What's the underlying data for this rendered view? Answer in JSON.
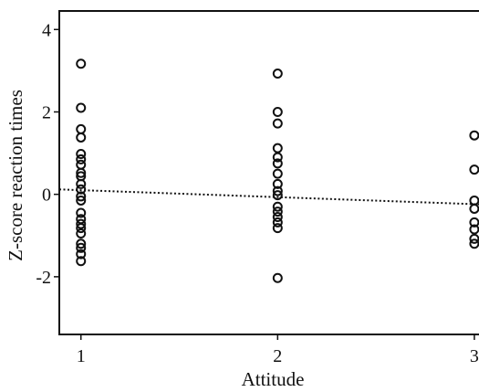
{
  "chart_data": {
    "type": "scatter",
    "title": "",
    "xlabel": "Attitude",
    "ylabel": "Z-score reaction times",
    "xlim": [
      0.89,
      3.07
    ],
    "ylim": [
      -3.4,
      4.45
    ],
    "x_ticks": [
      1,
      2,
      3
    ],
    "y_ticks": [
      -2,
      0,
      2,
      4
    ],
    "grid": false,
    "legend": "none",
    "marker": "hollow-circle",
    "colors": {
      "marker": "#111111",
      "axis": "#111111",
      "fit_line": "#111111"
    },
    "points": [
      {
        "x": 1,
        "y": 3.17
      },
      {
        "x": 1,
        "y": 2.1
      },
      {
        "x": 1,
        "y": 1.58
      },
      {
        "x": 1,
        "y": 1.38
      },
      {
        "x": 1,
        "y": 0.98
      },
      {
        "x": 1,
        "y": 0.85
      },
      {
        "x": 1,
        "y": 0.72
      },
      {
        "x": 1,
        "y": 0.52
      },
      {
        "x": 1,
        "y": 0.44
      },
      {
        "x": 1,
        "y": 0.25
      },
      {
        "x": 1,
        "y": 0.12
      },
      {
        "x": 1,
        "y": -0.05
      },
      {
        "x": 1,
        "y": -0.15
      },
      {
        "x": 1,
        "y": -0.45
      },
      {
        "x": 1,
        "y": -0.6
      },
      {
        "x": 1,
        "y": -0.72
      },
      {
        "x": 1,
        "y": -0.82
      },
      {
        "x": 1,
        "y": -0.95
      },
      {
        "x": 1,
        "y": -1.2
      },
      {
        "x": 1,
        "y": -1.3
      },
      {
        "x": 1,
        "y": -1.45
      },
      {
        "x": 1,
        "y": -1.62
      },
      {
        "x": 2,
        "y": 2.93
      },
      {
        "x": 2,
        "y": 2.0
      },
      {
        "x": 2,
        "y": 1.72
      },
      {
        "x": 2,
        "y": 1.12
      },
      {
        "x": 2,
        "y": 0.9
      },
      {
        "x": 2,
        "y": 0.75
      },
      {
        "x": 2,
        "y": 0.5
      },
      {
        "x": 2,
        "y": 0.25
      },
      {
        "x": 2,
        "y": 0.08
      },
      {
        "x": 2,
        "y": -0.02
      },
      {
        "x": 2,
        "y": -0.3
      },
      {
        "x": 2,
        "y": -0.42
      },
      {
        "x": 2,
        "y": -0.55
      },
      {
        "x": 2,
        "y": -0.68
      },
      {
        "x": 2,
        "y": -0.82
      },
      {
        "x": 2,
        "y": -2.03
      },
      {
        "x": 3,
        "y": 1.43
      },
      {
        "x": 3,
        "y": 0.6
      },
      {
        "x": 3,
        "y": -0.15
      },
      {
        "x": 3,
        "y": -0.35
      },
      {
        "x": 3,
        "y": -0.68
      },
      {
        "x": 3,
        "y": -0.85
      },
      {
        "x": 3,
        "y": -1.08
      },
      {
        "x": 3,
        "y": -1.2
      }
    ],
    "fit_line": {
      "style": "dotted",
      "points": [
        {
          "x": 0.89,
          "y": 0.12
        },
        {
          "x": 3.07,
          "y": -0.25
        }
      ]
    }
  }
}
